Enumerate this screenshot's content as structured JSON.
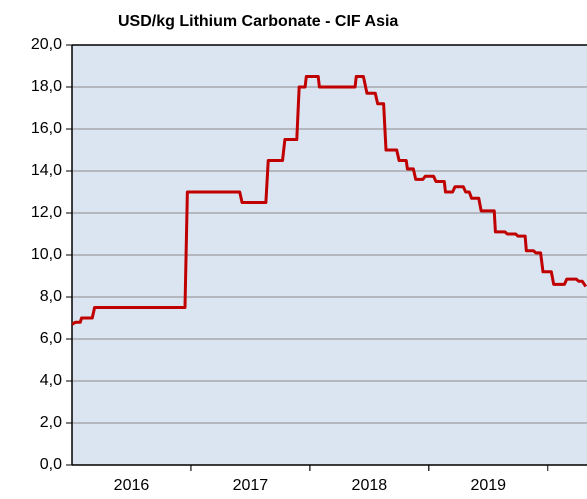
{
  "chart_data": {
    "type": "line",
    "title": "USD/kg Lithium Carbonate - CIF Asia",
    "x": [
      2016.0,
      2016.03,
      2016.07,
      2016.08,
      2016.17,
      2016.19,
      2016.95,
      2016.97,
      2017.41,
      2017.43,
      2017.63,
      2017.65,
      2017.77,
      2017.79,
      2017.89,
      2017.91,
      2017.96,
      2017.97,
      2018.07,
      2018.08,
      2018.38,
      2018.39,
      2018.45,
      2018.48,
      2018.55,
      2018.57,
      2018.62,
      2018.64,
      2018.73,
      2018.75,
      2018.81,
      2018.82,
      2018.87,
      2018.89,
      2018.95,
      2018.97,
      2019.04,
      2019.06,
      2019.13,
      2019.14,
      2019.2,
      2019.22,
      2019.29,
      2019.31,
      2019.34,
      2019.36,
      2019.42,
      2019.44,
      2019.55,
      2019.56,
      2019.64,
      2019.66,
      2019.73,
      2019.75,
      2019.81,
      2019.82,
      2019.88,
      2019.9,
      2019.94,
      2019.96,
      2020.03,
      2020.05,
      2020.14,
      2020.16,
      2020.24,
      2020.26,
      2020.29,
      2020.32
    ],
    "series": [
      {
        "name": "Lithium Carbonate",
        "color": "#c00000",
        "values": [
          6.7,
          6.8,
          6.8,
          7.0,
          7.0,
          7.5,
          7.5,
          13.0,
          13.0,
          12.5,
          12.5,
          14.5,
          14.5,
          15.5,
          15.5,
          18.0,
          18.0,
          18.5,
          18.5,
          18.0,
          18.0,
          18.5,
          18.5,
          17.7,
          17.7,
          17.2,
          17.2,
          15.0,
          15.0,
          14.5,
          14.5,
          14.1,
          14.1,
          13.6,
          13.6,
          13.75,
          13.75,
          13.5,
          13.5,
          13.0,
          13.0,
          13.25,
          13.25,
          13.0,
          13.0,
          12.7,
          12.7,
          12.1,
          12.1,
          11.1,
          11.1,
          11.0,
          11.0,
          10.9,
          10.9,
          10.2,
          10.2,
          10.1,
          10.1,
          9.2,
          9.2,
          8.6,
          8.6,
          8.85,
          8.85,
          8.75,
          8.75,
          8.5
        ]
      }
    ],
    "xlim": [
      2016,
      2020.33
    ],
    "xticks": [
      {
        "value": 2016.5,
        "label": "2016"
      },
      {
        "value": 2017.5,
        "label": "2017"
      },
      {
        "value": 2018.5,
        "label": "2018"
      },
      {
        "value": 2019.5,
        "label": "2019"
      }
    ],
    "ylim": [
      0,
      20
    ],
    "yticks": [
      {
        "value": 0,
        "label": "0,0"
      },
      {
        "value": 2,
        "label": "2,0"
      },
      {
        "value": 4,
        "label": "4,0"
      },
      {
        "value": 6,
        "label": "6,0"
      },
      {
        "value": 8,
        "label": "8,0"
      },
      {
        "value": 10,
        "label": "10,0"
      },
      {
        "value": 12,
        "label": "12,0"
      },
      {
        "value": 14,
        "label": "14,0"
      },
      {
        "value": 16,
        "label": "16,0"
      },
      {
        "value": 18,
        "label": "18,0"
      },
      {
        "value": 20,
        "label": "20,0"
      }
    ],
    "grid": true,
    "plot_background": "#dbe5f1"
  }
}
